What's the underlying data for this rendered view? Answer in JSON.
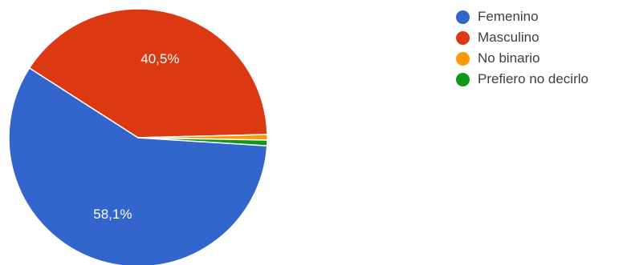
{
  "chart_data": {
    "type": "pie",
    "title": "",
    "series": [
      {
        "name": "Femenino",
        "value": 58.1,
        "color": "#3366cc",
        "label": "58,1%"
      },
      {
        "name": "Masculino",
        "value": 40.5,
        "color": "#dc3912",
        "label": "40,5%"
      },
      {
        "name": "No binario",
        "value": 0.7,
        "color": "#ff9900",
        "label": ""
      },
      {
        "name": "Prefiero no decirlo",
        "value": 0.7,
        "color": "#109618",
        "label": ""
      }
    ],
    "legend_position": "right"
  }
}
